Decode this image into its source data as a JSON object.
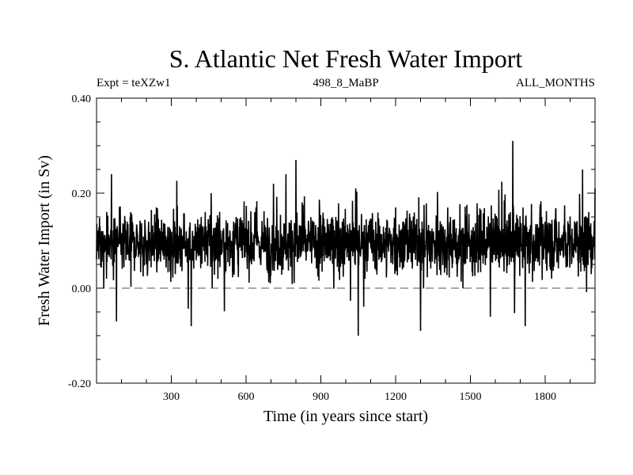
{
  "chart_data": {
    "type": "line",
    "title": "S. Atlantic Net Fresh Water Import",
    "subtitle_left": "Expt = teXZw1",
    "subtitle_center": "498_8_MaBP",
    "subtitle_right": "ALL_MONTHS",
    "xlabel": "Time (in years since start)",
    "ylabel": "Fresh Water Import (in Sv)",
    "xlim": [
      0,
      2000
    ],
    "ylim": [
      -0.2,
      0.4
    ],
    "x_ticks": [
      300,
      600,
      900,
      1200,
      1500,
      1800
    ],
    "x_tick_labels": [
      "300",
      "600",
      "900",
      "1200",
      "1500",
      "1800"
    ],
    "y_ticks": [
      -0.2,
      0.0,
      0.2,
      0.4
    ],
    "y_tick_labels": [
      "-0.20",
      "0.00",
      "0.20",
      "0.40"
    ],
    "reference_line": {
      "y": 0.0,
      "style": "dashed"
    },
    "series": [
      {
        "name": "Net fresh water import",
        "mean": 0.095,
        "x": [
          0,
          20,
          40,
          60,
          80,
          100,
          130,
          160,
          200,
          240,
          260,
          300,
          340,
          380,
          420,
          460,
          500,
          540,
          560,
          600,
          640,
          680,
          710,
          740,
          760,
          780,
          800,
          840,
          880,
          920,
          960,
          1000,
          1040,
          1050,
          1080,
          1120,
          1160,
          1200,
          1240,
          1280,
          1300,
          1340,
          1380,
          1420,
          1460,
          1500,
          1540,
          1580,
          1620,
          1660,
          1670,
          1700,
          1720,
          1760,
          1800,
          1840,
          1880,
          1920,
          1950,
          1980,
          2000
        ],
        "values": [
          0.06,
          0.12,
          0.02,
          0.24,
          -0.07,
          0.1,
          0.07,
          0.12,
          0.05,
          0.17,
          0.08,
          0.11,
          0.12,
          -0.08,
          0.15,
          0.2,
          0.07,
          0.1,
          0.15,
          0.09,
          0.17,
          0.08,
          0.22,
          0.05,
          0.24,
          0.11,
          0.27,
          0.09,
          0.12,
          0.07,
          0.15,
          0.1,
          0.21,
          -0.1,
          0.08,
          0.14,
          0.1,
          0.17,
          0.11,
          0.06,
          -0.09,
          0.12,
          0.09,
          0.15,
          0.07,
          0.1,
          0.13,
          -0.06,
          0.12,
          0.16,
          0.31,
          0.09,
          -0.08,
          0.1,
          0.14,
          0.09,
          0.12,
          0.08,
          0.25,
          0.1,
          0.21
        ]
      }
    ]
  }
}
